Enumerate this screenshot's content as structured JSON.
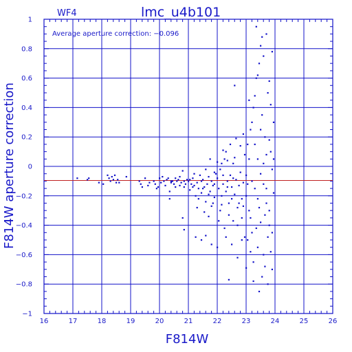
{
  "header": {
    "chip": "WF4",
    "title": "lmc_u4b101"
  },
  "annotation": "Average aperture correction:  −0.096",
  "chart_data": {
    "type": "scatter",
    "title": "lmc_u4b101",
    "xlabel": "F814W",
    "ylabel": "F814W aperture correction",
    "xlim": [
      16,
      26
    ],
    "ylim": [
      -1,
      1
    ],
    "grid": true,
    "x_tick_labels": [
      "16",
      "17",
      "18",
      "19",
      "20",
      "21",
      "22",
      "23",
      "24",
      "25",
      "26"
    ],
    "y_tick_labels": [
      "1",
      "0.8",
      "0.6",
      "0.4",
      "0.2",
      "0",
      "−0.2",
      "−0.4",
      "−0.6",
      "−0.8",
      "−1"
    ],
    "reference_line": {
      "y": -0.096,
      "color": "#c02020"
    },
    "colors": {
      "points": "#1010c8",
      "axes": "#1010c8",
      "grid": "#1010c8"
    },
    "points": [
      [
        17.15,
        -0.08
      ],
      [
        17.5,
        -0.09
      ],
      [
        17.55,
        -0.08
      ],
      [
        17.9,
        -0.11
      ],
      [
        18.05,
        -0.12
      ],
      [
        18.2,
        -0.06
      ],
      [
        18.25,
        -0.08
      ],
      [
        18.3,
        -0.1
      ],
      [
        18.35,
        -0.07
      ],
      [
        18.4,
        -0.09
      ],
      [
        18.45,
        -0.06
      ],
      [
        18.5,
        -0.11
      ],
      [
        18.55,
        -0.09
      ],
      [
        18.6,
        -0.11
      ],
      [
        18.85,
        -0.07
      ],
      [
        19.3,
        -0.1
      ],
      [
        19.35,
        -0.12
      ],
      [
        19.4,
        -0.14
      ],
      [
        19.5,
        -0.08
      ],
      [
        19.6,
        -0.13
      ],
      [
        19.65,
        -0.11
      ],
      [
        19.8,
        -0.1
      ],
      [
        19.85,
        -0.12
      ],
      [
        19.9,
        -0.15
      ],
      [
        19.95,
        -0.14
      ],
      [
        20.0,
        -0.08
      ],
      [
        20.05,
        -0.11
      ],
      [
        20.1,
        -0.07
      ],
      [
        20.15,
        -0.1
      ],
      [
        20.2,
        -0.13
      ],
      [
        20.25,
        -0.09
      ],
      [
        20.3,
        -0.08
      ],
      [
        20.35,
        -0.17
      ],
      [
        20.35,
        -0.22
      ],
      [
        20.4,
        -0.11
      ],
      [
        20.45,
        -0.1
      ],
      [
        20.5,
        -0.12
      ],
      [
        20.55,
        -0.08
      ],
      [
        20.6,
        -0.1
      ],
      [
        20.65,
        -0.09
      ],
      [
        20.7,
        -0.13
      ],
      [
        20.75,
        -0.11
      ],
      [
        20.8,
        -0.03
      ],
      [
        20.85,
        -0.14
      ],
      [
        20.9,
        -0.12
      ],
      [
        20.95,
        -0.09
      ],
      [
        20.4,
        -0.1
      ],
      [
        20.55,
        -0.14
      ],
      [
        20.7,
        -0.07
      ],
      [
        20.85,
        -0.1
      ],
      [
        21.0,
        -0.1
      ],
      [
        21.05,
        -0.16
      ],
      [
        21.1,
        -0.12
      ],
      [
        21.15,
        -0.08
      ],
      [
        21.2,
        -0.13
      ],
      [
        21.25,
        -0.2
      ],
      [
        21.3,
        -0.11
      ],
      [
        21.35,
        -0.15
      ],
      [
        21.4,
        -0.06
      ],
      [
        21.45,
        -0.18
      ],
      [
        21.5,
        -0.09
      ],
      [
        21.55,
        -0.14
      ],
      [
        21.6,
        -0.24
      ],
      [
        21.65,
        -0.12
      ],
      [
        21.7,
        -0.07
      ],
      [
        21.75,
        -0.17
      ],
      [
        21.8,
        -0.1
      ],
      [
        21.85,
        -0.13
      ],
      [
        21.9,
        -0.21
      ],
      [
        21.95,
        -0.05
      ],
      [
        21.05,
        -0.09
      ],
      [
        21.2,
        -0.05
      ],
      [
        21.35,
        -0.22
      ],
      [
        21.5,
        -0.15
      ],
      [
        21.6,
        -0.02
      ],
      [
        21.7,
        -0.19
      ],
      [
        21.8,
        -0.27
      ],
      [
        21.9,
        -0.12
      ],
      [
        21.15,
        -0.14
      ],
      [
        21.3,
        -0.28
      ],
      [
        21.45,
        -0.1
      ],
      [
        21.55,
        -0.31
      ],
      [
        21.7,
        -0.34
      ],
      [
        21.85,
        -0.25
      ],
      [
        21.25,
        -0.48
      ],
      [
        21.45,
        -0.5
      ],
      [
        21.6,
        -0.47
      ],
      [
        21.8,
        -0.53
      ],
      [
        20.85,
        -0.43
      ],
      [
        20.8,
        -0.35
      ],
      [
        21.75,
        0.05
      ],
      [
        21.9,
        -0.04
      ],
      [
        22.0,
        -0.08
      ],
      [
        22.05,
        -0.15
      ],
      [
        22.1,
        -0.02
      ],
      [
        22.15,
        -0.2
      ],
      [
        22.2,
        -0.12
      ],
      [
        22.25,
        0.05
      ],
      [
        22.3,
        -0.17
      ],
      [
        22.35,
        -0.1
      ],
      [
        22.4,
        -0.25
      ],
      [
        22.45,
        -0.06
      ],
      [
        22.5,
        -0.14
      ],
      [
        22.55,
        0.02
      ],
      [
        22.6,
        -0.19
      ],
      [
        22.65,
        -0.09
      ],
      [
        22.7,
        -0.28
      ],
      [
        22.75,
        -0.13
      ],
      [
        22.8,
        -0.04
      ],
      [
        22.85,
        -0.22
      ],
      [
        22.9,
        -0.11
      ],
      [
        22.95,
        0.08
      ],
      [
        22.0,
        0.03
      ],
      [
        22.1,
        -0.3
      ],
      [
        22.2,
        -0.06
      ],
      [
        22.3,
        0.1
      ],
      [
        22.4,
        -0.33
      ],
      [
        22.5,
        -0.22
      ],
      [
        22.6,
        0.06
      ],
      [
        22.7,
        -0.4
      ],
      [
        22.8,
        0.14
      ],
      [
        22.9,
        -0.27
      ],
      [
        22.05,
        -0.37
      ],
      [
        22.25,
        -0.42
      ],
      [
        22.45,
        0.15
      ],
      [
        22.65,
        0.19
      ],
      [
        22.85,
        -0.35
      ],
      [
        22.95,
        -0.48
      ],
      [
        22.15,
        -0.26
      ],
      [
        22.35,
        -0.14
      ],
      [
        22.55,
        -0.08
      ],
      [
        22.75,
        -0.25
      ],
      [
        22.2,
        0.11
      ],
      [
        22.6,
        0.55
      ],
      [
        22.3,
        -0.48
      ],
      [
        22.5,
        -0.53
      ],
      [
        22.7,
        -0.62
      ],
      [
        22.85,
        -0.5
      ],
      [
        22.0,
        -0.55
      ],
      [
        22.15,
        0.02
      ],
      [
        22.35,
        0.04
      ],
      [
        22.55,
        -0.37
      ],
      [
        22.9,
        0.22
      ],
      [
        22.4,
        -0.77
      ],
      [
        23.0,
        -0.06
      ],
      [
        23.05,
        0.15
      ],
      [
        23.1,
        -0.3
      ],
      [
        23.15,
        0.25
      ],
      [
        23.2,
        -0.45
      ],
      [
        23.25,
        0.4
      ],
      [
        23.3,
        -0.15
      ],
      [
        23.35,
        0.6
      ],
      [
        23.4,
        -0.55
      ],
      [
        23.45,
        0.7
      ],
      [
        23.5,
        -0.05
      ],
      [
        23.55,
        0.35
      ],
      [
        23.6,
        -0.6
      ],
      [
        23.65,
        0.2
      ],
      [
        23.7,
        -0.25
      ],
      [
        23.75,
        0.5
      ],
      [
        23.8,
        -0.4
      ],
      [
        23.85,
        0.1
      ],
      [
        23.9,
        -0.7
      ],
      [
        23.95,
        0.3
      ],
      [
        23.0,
        -0.2
      ],
      [
        23.1,
        0.05
      ],
      [
        23.2,
        -0.1
      ],
      [
        23.3,
        0.15
      ],
      [
        23.4,
        -0.22
      ],
      [
        23.5,
        0.25
      ],
      [
        23.6,
        -0.12
      ],
      [
        23.7,
        0.08
      ],
      [
        23.8,
        -0.3
      ],
      [
        23.9,
        -0.02
      ],
      [
        23.05,
        -0.5
      ],
      [
        23.15,
        -0.35
      ],
      [
        23.25,
        -0.65
      ],
      [
        23.35,
        -0.42
      ],
      [
        23.45,
        -0.28
      ],
      [
        23.55,
        -0.75
      ],
      [
        23.65,
        -0.33
      ],
      [
        23.75,
        -0.48
      ],
      [
        23.85,
        -0.58
      ],
      [
        23.95,
        -0.18
      ],
      [
        23.0,
        -0.69
      ],
      [
        23.1,
        0.45
      ],
      [
        23.2,
        0.3
      ],
      [
        23.3,
        0.48
      ],
      [
        23.4,
        0.62
      ],
      [
        23.5,
        0.82
      ],
      [
        23.6,
        0.75
      ],
      [
        23.7,
        0.9
      ],
      [
        23.8,
        0.58
      ],
      [
        23.9,
        0.78
      ],
      [
        23.35,
        0.95
      ],
      [
        23.55,
        0.88
      ],
      [
        23.45,
        -0.85
      ],
      [
        23.25,
        -0.78
      ],
      [
        23.65,
        -0.68
      ],
      [
        23.75,
        -0.8
      ],
      [
        23.85,
        0.42
      ],
      [
        23.95,
        0.05
      ],
      [
        23.15,
        -0.58
      ],
      [
        23.4,
        0.05
      ],
      [
        23.6,
        0.02
      ],
      [
        23.8,
        0.18
      ],
      [
        23.05,
        -0.12
      ],
      [
        23.5,
        -0.38
      ],
      [
        23.7,
        -0.15
      ],
      [
        23.9,
        -0.45
      ]
    ]
  }
}
